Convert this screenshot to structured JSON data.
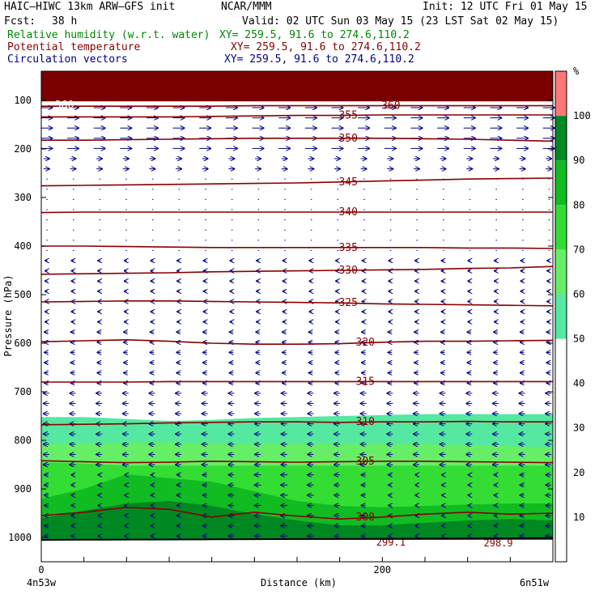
{
  "header": {
    "model": "HAIC–HIWC 13km ARW–GFS init",
    "center": "NCAR/MMM",
    "init": "Init: 12 UTC Fri 01 May 15",
    "fcst_label": "Fcst:",
    "fcst_value": "38 h",
    "valid": "Valid: 02 UTC Sun 03 May 15 (23 LST Sat 02 May 15)"
  },
  "fields": [
    {
      "name": "Relative humidity (w.r.t. water)",
      "xy": "XY= 259.5, 91.6 to 274.6,110.2",
      "color": "#008800"
    },
    {
      "name": "Potential temperature",
      "xy": "XY= 259.5, 91.6 to 274.6,110.2",
      "color": "#880000"
    },
    {
      "name": "Circulation vectors",
      "xy": "XY= 259.5, 91.6 to 274.6,110.2",
      "color": "#000088"
    }
  ],
  "chart_data": {
    "type": "cross-section",
    "ylabel": "Pressure (hPa)",
    "xlabel": "Distance (km)",
    "x_start_label": "4n53w",
    "x_end_label": "6n51w",
    "xlim": [
      0,
      300
    ],
    "ylim": [
      1050,
      40
    ],
    "y_ticks": [
      100,
      200,
      300,
      400,
      500,
      600,
      700,
      800,
      900,
      1000
    ],
    "x_tick_labels": [
      {
        "value": 0,
        "label": "0"
      },
      {
        "value": 200,
        "label": "200"
      }
    ],
    "x_minor_ticks": [
      0,
      25,
      50,
      75,
      100,
      125,
      150,
      175,
      200,
      225,
      250,
      275,
      300
    ],
    "theta_contours": [
      {
        "label": "300",
        "label_x": 190,
        "p": [
          955,
          948,
          938,
          942,
          958,
          948,
          956,
          962,
          958,
          952,
          948,
          952,
          950
        ]
      },
      {
        "label": "305",
        "label_x": 190,
        "p": [
          842,
          844,
          846,
          845,
          843,
          844,
          845,
          844,
          843,
          843,
          844,
          845,
          846
        ]
      },
      {
        "label": "310",
        "label_x": 190,
        "p": [
          768,
          767,
          766,
          764,
          763,
          762,
          762,
          763,
          762,
          762,
          761,
          762,
          762
        ]
      },
      {
        "label": "315",
        "label_x": 190,
        "p": [
          680,
          680,
          680,
          679,
          679,
          679,
          679,
          679,
          679,
          679,
          679,
          679,
          679
        ]
      },
      {
        "label": "320",
        "label_x": 190,
        "p": [
          597,
          595,
          593,
          596,
          600,
          602,
          602,
          601,
          598,
          596,
          596,
          595,
          594
        ]
      },
      {
        "label": "325",
        "label_x": 180,
        "p": [
          515,
          514,
          513,
          513,
          514,
          515,
          516,
          517,
          519,
          520,
          521,
          522,
          523
        ]
      },
      {
        "label": "330",
        "label_x": 180,
        "p": [
          458,
          457,
          456,
          455,
          453,
          452,
          451,
          450,
          449,
          448,
          446,
          445,
          442
        ]
      },
      {
        "label": "335",
        "label_x": 180,
        "p": [
          400,
          400,
          401,
          402,
          403,
          403,
          403,
          403,
          403,
          403,
          404,
          404,
          405
        ]
      },
      {
        "label": "340",
        "label_x": 180,
        "p": [
          331,
          330,
          330,
          330,
          330,
          330,
          330,
          330,
          330,
          330,
          330,
          330,
          330
        ]
      },
      {
        "label": "345",
        "label_x": 180,
        "p": [
          276,
          275,
          274,
          273,
          272,
          271,
          270,
          268,
          266,
          264,
          262,
          261,
          260
        ]
      },
      {
        "label": "350",
        "label_x": 180,
        "p": [
          182,
          182,
          181,
          180,
          179,
          178,
          178,
          178,
          178,
          179,
          180,
          182,
          184
        ]
      },
      {
        "label": "355",
        "label_x": 180,
        "p": [
          134,
          134,
          134,
          134,
          133,
          132,
          131,
          131,
          130,
          130,
          130,
          130,
          130
        ]
      },
      {
        "label": "360",
        "label_x": 205,
        "p": [
          112,
          112,
          112,
          112,
          112,
          111,
          111,
          111,
          111,
          111,
          111,
          111,
          111
        ]
      },
      {
        "label": "360",
        "label_x": 8,
        "p": []
      }
    ],
    "extra_labels": [
      {
        "text": "299.1",
        "x": 205,
        "p": [
          1010
        ]
      },
      {
        "text": "298.9",
        "x": 268,
        "p": [
          1012
        ]
      }
    ],
    "rh_legend": {
      "unit": "%",
      "levels": [
        10,
        20,
        30,
        40,
        50,
        60,
        70,
        80,
        90,
        100
      ],
      "colors": [
        {
          "from": 50,
          "to": 60,
          "color": "#55e8a0"
        },
        {
          "from": 60,
          "to": 70,
          "color": "#66ee66"
        },
        {
          "from": 70,
          "to": 80,
          "color": "#33dd33"
        },
        {
          "from": 80,
          "to": 90,
          "color": "#11bb22"
        },
        {
          "from": 90,
          "to": 100,
          "color": "#008822"
        },
        {
          "from": 100,
          "to": 110,
          "color": "#ff7777"
        }
      ]
    },
    "rh_bands": [
      {
        "color": "#55e8a0",
        "top": [
          752,
          752,
          756,
          760,
          758,
          754,
          752,
          750,
          748,
          746,
          746,
          746,
          746
        ],
        "bottom": 1005
      },
      {
        "color": "#66ee66",
        "top": [
          808,
          806,
          804,
          804,
          806,
          806,
          806,
          806,
          806,
          808,
          810,
          812,
          814
        ],
        "bottom": 1005
      },
      {
        "color": "#33dd33",
        "top": [
          845,
          848,
          852,
          852,
          852,
          852,
          852,
          852,
          852,
          852,
          852,
          852,
          852
        ],
        "bottom": 1005
      },
      {
        "color": "#11bb22",
        "top": [
          920,
          900,
          870,
          878,
          885,
          905,
          925,
          935,
          938,
          935,
          932,
          930,
          930
        ],
        "bottom": 1005
      },
      {
        "color": "#008822",
        "top": [
          960,
          945,
          930,
          925,
          935,
          952,
          965,
          975,
          975,
          970,
          965,
          962,
          965
        ],
        "bottom": 1005
      }
    ],
    "top_band": {
      "color": "#7a0000",
      "top": 40,
      "bottom": 102
    },
    "wind_arrows": {
      "color": "#000088"
    }
  }
}
